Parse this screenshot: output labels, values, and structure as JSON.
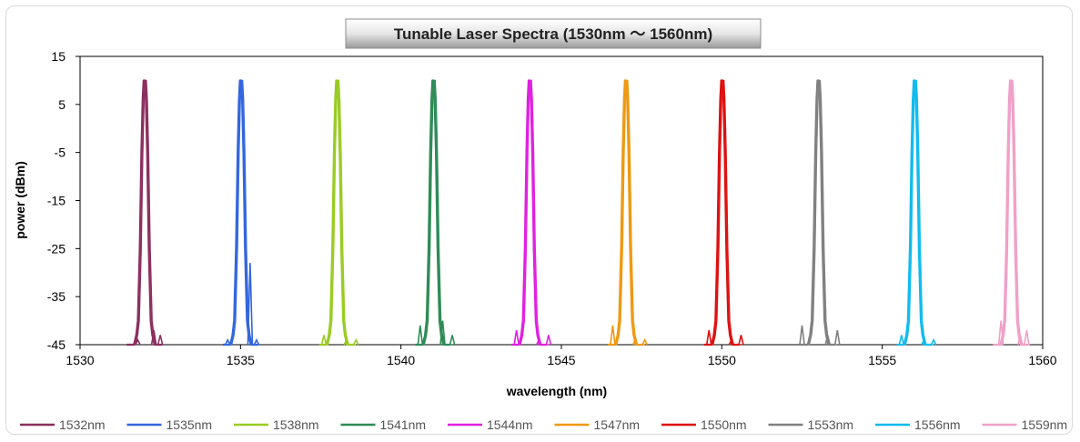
{
  "chart_data": {
    "type": "line",
    "title": "Tunable Laser Spectra (1530nm ～ 1560nm)",
    "xlabel": "wavelength (nm)",
    "ylabel": "power (dBm)",
    "xlim": [
      1530,
      1560
    ],
    "ylim": [
      -45,
      15
    ],
    "xticks": [
      1530,
      1535,
      1540,
      1545,
      1550,
      1555,
      1560
    ],
    "yticks": [
      -45,
      -35,
      -25,
      -15,
      -5,
      5,
      15
    ],
    "grid": false,
    "legend_position": "bottom",
    "peak_power_dBm": 10,
    "floor_dBm": -45,
    "series": [
      {
        "name": "1532nm",
        "center": 1532,
        "color": "#8b2f5f",
        "side_peaks": [
          [
            1531.8,
            -44
          ],
          [
            1532.3,
            -42
          ],
          [
            1532.5,
            -43
          ]
        ]
      },
      {
        "name": "1535nm",
        "center": 1535,
        "color": "#3366dd",
        "side_peaks": [
          [
            1534.6,
            -44
          ],
          [
            1535.3,
            -28
          ],
          [
            1535.5,
            -44
          ]
        ]
      },
      {
        "name": "1538nm",
        "center": 1538,
        "color": "#99cc22",
        "side_peaks": [
          [
            1537.6,
            -43
          ],
          [
            1538.3,
            -44
          ],
          [
            1538.6,
            -44
          ]
        ]
      },
      {
        "name": "1541nm",
        "center": 1541,
        "color": "#2e8b57",
        "side_peaks": [
          [
            1540.6,
            -41
          ],
          [
            1541.3,
            -40
          ],
          [
            1541.6,
            -43
          ]
        ]
      },
      {
        "name": "1544nm",
        "center": 1544,
        "color": "#e020e0",
        "side_peaks": [
          [
            1543.6,
            -42
          ],
          [
            1544.3,
            -44
          ],
          [
            1544.6,
            -43
          ]
        ]
      },
      {
        "name": "1547nm",
        "center": 1547,
        "color": "#ee9911",
        "side_peaks": [
          [
            1546.6,
            -41
          ],
          [
            1547.3,
            -44
          ],
          [
            1547.6,
            -44
          ]
        ]
      },
      {
        "name": "1550nm",
        "center": 1550,
        "color": "#dd1111",
        "side_peaks": [
          [
            1549.6,
            -42
          ],
          [
            1550.3,
            -44
          ],
          [
            1550.6,
            -43
          ]
        ]
      },
      {
        "name": "1553nm",
        "center": 1553,
        "color": "#808080",
        "side_peaks": [
          [
            1552.5,
            -41
          ],
          [
            1553.3,
            -43
          ],
          [
            1553.6,
            -42
          ]
        ]
      },
      {
        "name": "1556nm",
        "center": 1556,
        "color": "#11bbee",
        "side_peaks": [
          [
            1555.6,
            -43
          ],
          [
            1556.3,
            -44
          ],
          [
            1556.6,
            -44
          ]
        ]
      },
      {
        "name": "1559nm",
        "center": 1559,
        "color": "#f0a0c8",
        "side_peaks": [
          [
            1558.7,
            -40
          ],
          [
            1559.3,
            -43
          ],
          [
            1559.5,
            -42
          ]
        ]
      }
    ]
  }
}
